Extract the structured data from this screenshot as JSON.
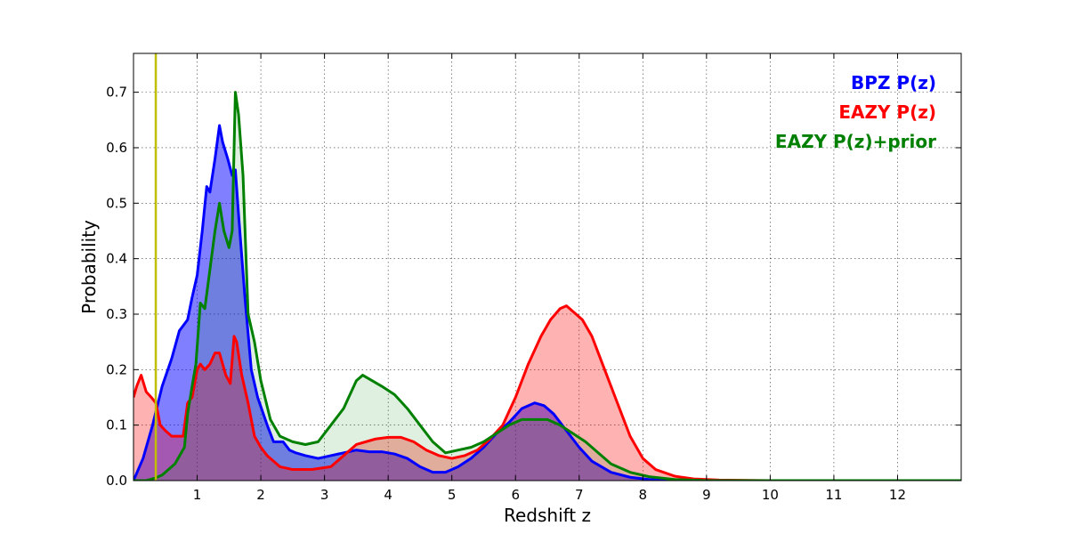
{
  "chart_data": {
    "type": "area",
    "title": "",
    "xlabel": "Redshift z",
    "ylabel": "Probability",
    "xlim": [
      0,
      13
    ],
    "ylim": [
      0,
      0.77
    ],
    "xticks": [
      1,
      2,
      3,
      4,
      5,
      6,
      7,
      8,
      9,
      10,
      11,
      12
    ],
    "yticks": [
      0.0,
      0.1,
      0.2,
      0.3,
      0.4,
      0.5,
      0.6,
      0.7
    ],
    "grid": true,
    "legend_position": "top-right",
    "vertical_line": {
      "x": 0.35,
      "color": "#bfbf00"
    },
    "series": [
      {
        "name": "BPZ P(z)",
        "color": "#0000ff",
        "fill": "#0000ff",
        "fill_opacity": 0.5,
        "x": [
          0,
          0.15,
          0.3,
          0.45,
          0.6,
          0.72,
          0.85,
          0.92,
          1.0,
          1.08,
          1.15,
          1.2,
          1.28,
          1.35,
          1.4,
          1.48,
          1.55,
          1.6,
          1.65,
          1.75,
          1.85,
          1.95,
          2.1,
          2.2,
          2.35,
          2.45,
          2.55,
          2.7,
          2.9,
          3.1,
          3.3,
          3.5,
          3.7,
          3.9,
          4.1,
          4.3,
          4.5,
          4.7,
          4.9,
          5.1,
          5.3,
          5.5,
          5.7,
          5.9,
          6.1,
          6.3,
          6.45,
          6.6,
          6.8,
          7.0,
          7.2,
          7.5,
          7.8,
          8.1,
          8.5,
          9.0,
          10,
          11,
          12,
          13
        ],
        "y": [
          0.0,
          0.04,
          0.1,
          0.17,
          0.22,
          0.27,
          0.29,
          0.33,
          0.37,
          0.45,
          0.53,
          0.52,
          0.58,
          0.64,
          0.61,
          0.58,
          0.55,
          0.56,
          0.48,
          0.33,
          0.2,
          0.15,
          0.1,
          0.07,
          0.07,
          0.055,
          0.05,
          0.045,
          0.04,
          0.045,
          0.05,
          0.055,
          0.052,
          0.052,
          0.048,
          0.04,
          0.025,
          0.015,
          0.015,
          0.025,
          0.04,
          0.06,
          0.085,
          0.105,
          0.13,
          0.14,
          0.135,
          0.12,
          0.09,
          0.06,
          0.035,
          0.015,
          0.006,
          0.002,
          0.001,
          0.0,
          0.0,
          0.0,
          0.0,
          0.0
        ]
      },
      {
        "name": "EAZY P(z)",
        "color": "#ff0000",
        "fill": "#ff0000",
        "fill_opacity": 0.3,
        "x": [
          0,
          0.05,
          0.12,
          0.2,
          0.28,
          0.35,
          0.42,
          0.5,
          0.6,
          0.7,
          0.78,
          0.85,
          0.92,
          1.0,
          1.05,
          1.12,
          1.2,
          1.28,
          1.35,
          1.45,
          1.52,
          1.58,
          1.62,
          1.7,
          1.8,
          1.9,
          2.0,
          2.1,
          2.3,
          2.5,
          2.8,
          3.1,
          3.3,
          3.5,
          3.8,
          4.0,
          4.2,
          4.4,
          4.6,
          4.8,
          5.0,
          5.2,
          5.4,
          5.6,
          5.8,
          6.0,
          6.2,
          6.4,
          6.55,
          6.7,
          6.8,
          6.9,
          7.05,
          7.2,
          7.4,
          7.6,
          7.8,
          8.0,
          8.2,
          8.5,
          8.8,
          9.2,
          10,
          11,
          12,
          13
        ],
        "y": [
          0.15,
          0.17,
          0.19,
          0.16,
          0.15,
          0.14,
          0.1,
          0.09,
          0.08,
          0.08,
          0.08,
          0.14,
          0.15,
          0.2,
          0.21,
          0.2,
          0.21,
          0.23,
          0.23,
          0.19,
          0.175,
          0.26,
          0.25,
          0.19,
          0.14,
          0.08,
          0.06,
          0.045,
          0.025,
          0.02,
          0.02,
          0.025,
          0.045,
          0.065,
          0.075,
          0.078,
          0.078,
          0.07,
          0.055,
          0.045,
          0.04,
          0.045,
          0.055,
          0.075,
          0.1,
          0.15,
          0.21,
          0.26,
          0.29,
          0.31,
          0.315,
          0.305,
          0.29,
          0.26,
          0.2,
          0.14,
          0.08,
          0.04,
          0.02,
          0.008,
          0.003,
          0.001,
          0.0,
          0.0,
          0.0,
          0.0
        ]
      },
      {
        "name": "EAZY P(z)+prior",
        "color": "#008000",
        "fill": "#008000",
        "fill_opacity": 0.12,
        "x": [
          0,
          0.2,
          0.35,
          0.45,
          0.55,
          0.65,
          0.75,
          0.8,
          0.85,
          0.92,
          0.98,
          1.05,
          1.12,
          1.2,
          1.28,
          1.35,
          1.42,
          1.5,
          1.55,
          1.6,
          1.65,
          1.72,
          1.8,
          1.9,
          2.0,
          2.15,
          2.3,
          2.5,
          2.7,
          2.9,
          3.1,
          3.3,
          3.5,
          3.6,
          3.75,
          3.9,
          4.1,
          4.3,
          4.5,
          4.7,
          4.9,
          5.1,
          5.3,
          5.5,
          5.7,
          5.9,
          6.1,
          6.3,
          6.5,
          6.7,
          6.9,
          7.1,
          7.3,
          7.5,
          7.8,
          8.1,
          8.5,
          9.0,
          10,
          11,
          12,
          13
        ],
        "y": [
          0.0,
          0.0,
          0.005,
          0.01,
          0.02,
          0.03,
          0.05,
          0.06,
          0.12,
          0.17,
          0.21,
          0.32,
          0.31,
          0.38,
          0.45,
          0.5,
          0.45,
          0.42,
          0.45,
          0.7,
          0.66,
          0.55,
          0.3,
          0.25,
          0.18,
          0.11,
          0.08,
          0.07,
          0.065,
          0.07,
          0.1,
          0.13,
          0.18,
          0.19,
          0.18,
          0.17,
          0.155,
          0.13,
          0.1,
          0.07,
          0.05,
          0.055,
          0.06,
          0.07,
          0.085,
          0.1,
          0.11,
          0.11,
          0.11,
          0.1,
          0.085,
          0.07,
          0.05,
          0.03,
          0.015,
          0.007,
          0.002,
          0.0,
          0.0,
          0.0,
          0.0,
          0.0
        ]
      }
    ]
  }
}
